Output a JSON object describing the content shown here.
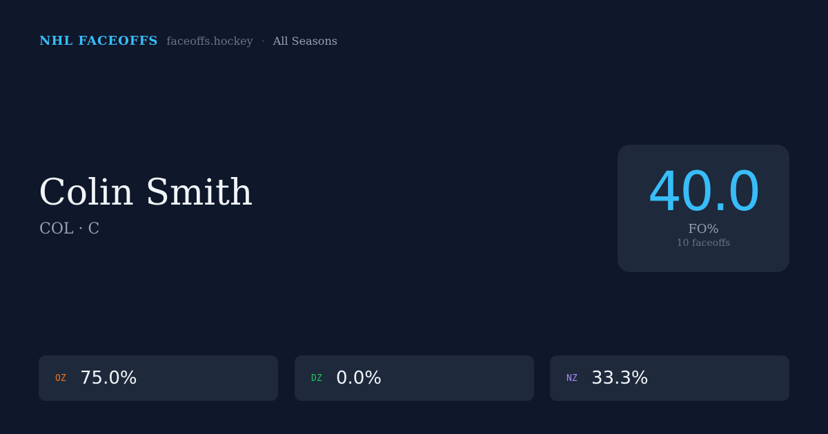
{
  "header": {
    "brand": "NHL FACEOFFS",
    "domain": "faceoffs.hockey",
    "separator": "·",
    "season": "All Seasons"
  },
  "player": {
    "name": "Colin Smith",
    "team_position": "COL · C"
  },
  "summary": {
    "value": "40.0",
    "label": "FO%",
    "count": "10 faceoffs"
  },
  "zones": [
    {
      "label": "OZ",
      "value": "75.0%",
      "color": "#f97316"
    },
    {
      "label": "DZ",
      "value": "0.0%",
      "color": "#22c55e"
    },
    {
      "label": "NZ",
      "value": "33.3%",
      "color": "#a78bfa"
    }
  ]
}
